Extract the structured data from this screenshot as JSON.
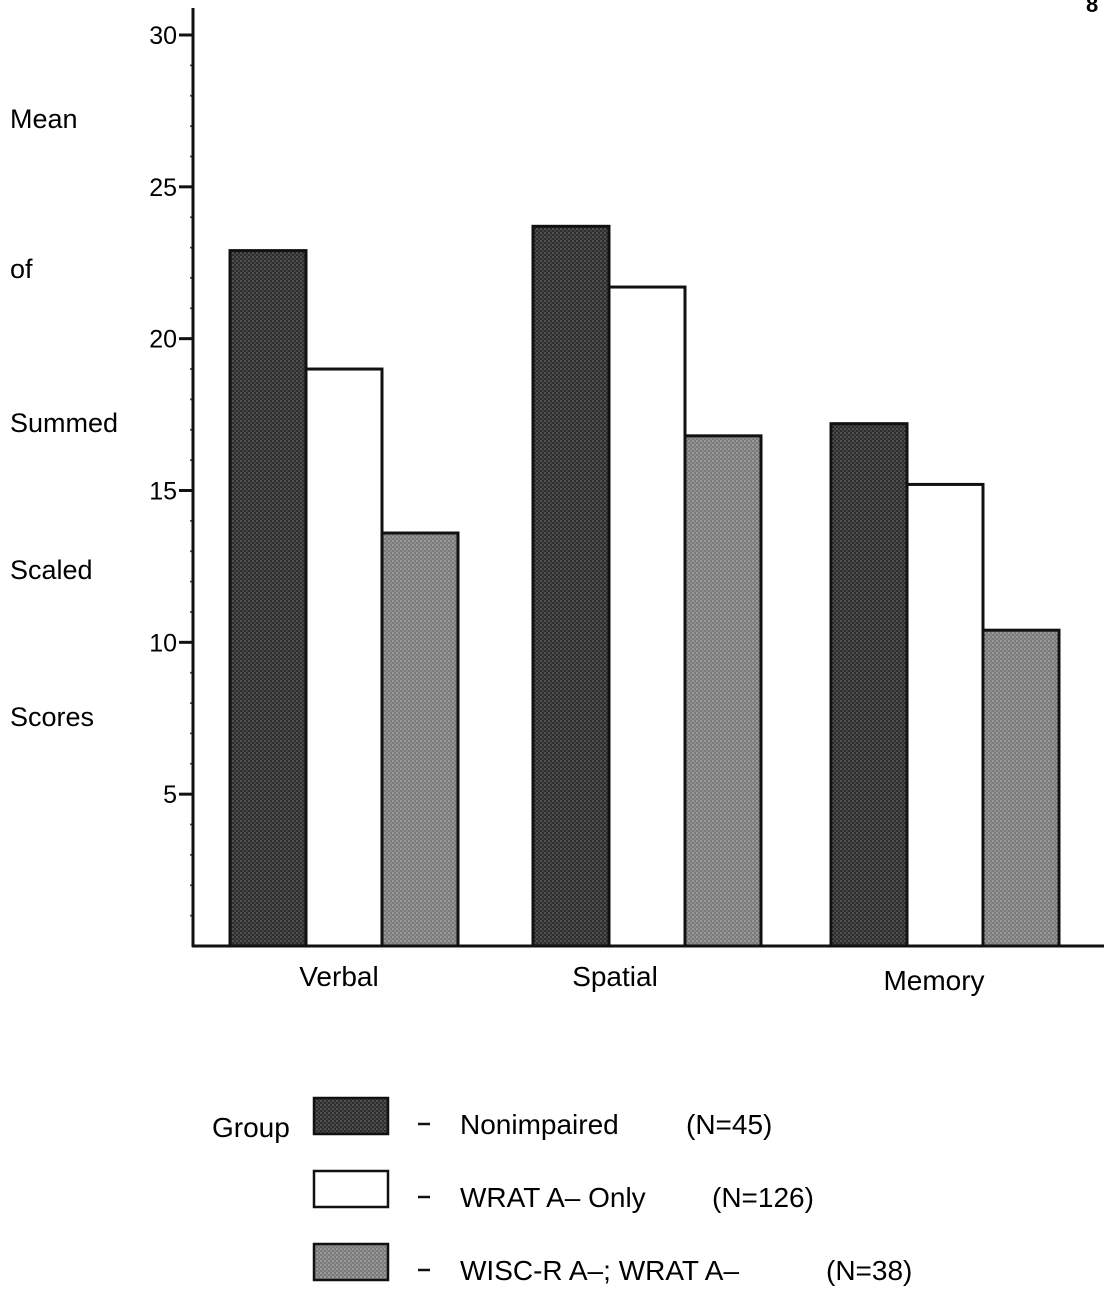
{
  "page_mark": "8",
  "chart_data": {
    "type": "bar",
    "ylabel": "Mean of Summed Scaled Scores",
    "ylabel_words": [
      "Mean",
      "of",
      "Summed",
      "Scaled",
      "Scores"
    ],
    "xlabel": "",
    "categories": [
      "Verbal",
      "Spatial",
      "Memory"
    ],
    "ylim": [
      0,
      30
    ],
    "yticks": [
      5,
      10,
      15,
      20,
      25,
      30
    ],
    "grid": false,
    "legend_title": "Group",
    "series": [
      {
        "name": "Nonimpaired",
        "n": "(N=45)",
        "values": [
          22.9,
          23.7,
          17.2
        ],
        "fill": "#3a3a3a"
      },
      {
        "name": "WRAT A– Only",
        "n": "(N=126)",
        "values": [
          19.0,
          21.7,
          15.2
        ],
        "fill": "#ffffff"
      },
      {
        "name": "WISC-R A–; WRAT A–",
        "n": "(N=38)",
        "values": [
          13.6,
          16.8,
          10.4
        ],
        "fill": "#8c8c8c"
      }
    ]
  }
}
